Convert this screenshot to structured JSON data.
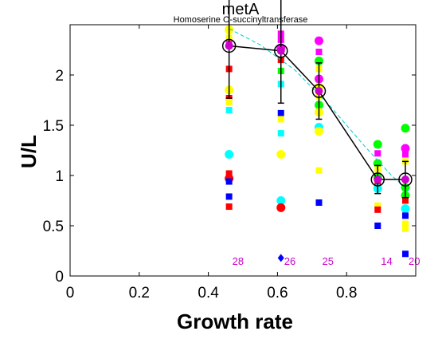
{
  "chart_data": {
    "type": "scatter",
    "title": "metA",
    "subtitle": "Homoserine O-succinyltransferase",
    "xlabel": "Growth rate",
    "ylabel": "U/L",
    "xlim": [
      0,
      1.0
    ],
    "ylim": [
      0,
      2.5
    ],
    "x_ticks": [
      {
        "value": 0,
        "label": "0"
      },
      {
        "value": 0.2,
        "label": "0.2"
      },
      {
        "value": 0.4,
        "label": "0.4"
      },
      {
        "value": 0.6,
        "label": "0.6"
      },
      {
        "value": 0.8,
        "label": "0.8"
      }
    ],
    "y_ticks": [
      {
        "value": 0,
        "label": "0"
      },
      {
        "value": 0.5,
        "label": "0.5"
      },
      {
        "value": 1,
        "label": "1"
      },
      {
        "value": 1.5,
        "label": "1.5"
      },
      {
        "value": 2,
        "label": "2"
      }
    ],
    "grid": false,
    "mean_series": {
      "color": "#000000",
      "points": [
        {
          "x": 0.46,
          "y": 2.29,
          "err": 0.52
        },
        {
          "x": 0.61,
          "y": 2.24,
          "err": 0.52
        },
        {
          "x": 0.72,
          "y": 1.84,
          "err": 0.28
        },
        {
          "x": 0.89,
          "y": 0.96,
          "err": 0.14
        },
        {
          "x": 0.97,
          "y": 0.96,
          "err": 0.18
        }
      ]
    },
    "magenta_markers": [
      {
        "x": 0.46,
        "y": 2.29
      },
      {
        "x": 0.61,
        "y": 2.24
      },
      {
        "x": 0.72,
        "y": 1.84
      },
      {
        "x": 0.89,
        "y": 0.96
      },
      {
        "x": 0.97,
        "y": 0.96
      }
    ],
    "fit_line": {
      "color": "#00cccc",
      "style": "dashed",
      "points": [
        {
          "x": 0.46,
          "y": 2.46
        },
        {
          "x": 0.55,
          "y": 2.3
        },
        {
          "x": 0.65,
          "y": 2.05
        },
        {
          "x": 0.75,
          "y": 1.7
        },
        {
          "x": 0.85,
          "y": 1.3
        },
        {
          "x": 0.93,
          "y": 1.0
        },
        {
          "x": 0.98,
          "y": 0.85
        }
      ]
    },
    "sample_counts": [
      {
        "x": 0.46,
        "label": "28"
      },
      {
        "x": 0.61,
        "label": "26"
      },
      {
        "x": 0.72,
        "label": "25"
      },
      {
        "x": 0.89,
        "label": "14"
      },
      {
        "x": 0.97,
        "label": "20"
      }
    ],
    "count_label_y": 0.11,
    "count_color": "#cc00cc",
    "points": [
      {
        "x": 0.46,
        "y": 2.45,
        "color": "#ffff00",
        "shape": "circle"
      },
      {
        "x": 0.46,
        "y": 2.37,
        "color": "#ffff00",
        "shape": "square"
      },
      {
        "x": 0.46,
        "y": 2.31,
        "color": "#ff00ff",
        "shape": "square"
      },
      {
        "x": 0.46,
        "y": 2.06,
        "color": "#ff0000",
        "shape": "square"
      },
      {
        "x": 0.46,
        "y": 1.85,
        "color": "#ffff00",
        "shape": "circle"
      },
      {
        "x": 0.46,
        "y": 1.77,
        "color": "#ff0000",
        "shape": "square"
      },
      {
        "x": 0.46,
        "y": 1.73,
        "color": "#ffff00",
        "shape": "square"
      },
      {
        "x": 0.46,
        "y": 1.65,
        "color": "#00ffff",
        "shape": "square"
      },
      {
        "x": 0.46,
        "y": 1.21,
        "color": "#00ffff",
        "shape": "circle"
      },
      {
        "x": 0.46,
        "y": 1.02,
        "color": "#ff0000",
        "shape": "square"
      },
      {
        "x": 0.46,
        "y": 0.97,
        "color": "#ff0000",
        "shape": "circle"
      },
      {
        "x": 0.46,
        "y": 0.94,
        "color": "#0000ff",
        "shape": "square"
      },
      {
        "x": 0.46,
        "y": 0.79,
        "color": "#0000ff",
        "shape": "square"
      },
      {
        "x": 0.46,
        "y": 0.69,
        "color": "#ff0000",
        "shape": "square"
      },
      {
        "x": 0.61,
        "y": 2.41,
        "color": "#ff00ff",
        "shape": "square"
      },
      {
        "x": 0.61,
        "y": 2.35,
        "color": "#ff00ff",
        "shape": "square"
      },
      {
        "x": 0.61,
        "y": 2.27,
        "color": "#ff00ff",
        "shape": "circle"
      },
      {
        "x": 0.61,
        "y": 2.15,
        "color": "#ff0000",
        "shape": "square"
      },
      {
        "x": 0.61,
        "y": 2.04,
        "color": "#00ff00",
        "shape": "square"
      },
      {
        "x": 0.61,
        "y": 1.91,
        "color": "#00ffff",
        "shape": "square"
      },
      {
        "x": 0.61,
        "y": 1.62,
        "color": "#0000ff",
        "shape": "square"
      },
      {
        "x": 0.61,
        "y": 1.56,
        "color": "#ffff00",
        "shape": "square"
      },
      {
        "x": 0.61,
        "y": 1.42,
        "color": "#00ffff",
        "shape": "square"
      },
      {
        "x": 0.61,
        "y": 1.21,
        "color": "#ffff00",
        "shape": "circle"
      },
      {
        "x": 0.61,
        "y": 0.75,
        "color": "#00ffff",
        "shape": "circle"
      },
      {
        "x": 0.61,
        "y": 0.68,
        "color": "#ff0000",
        "shape": "circle"
      },
      {
        "x": 0.61,
        "y": 0.18,
        "color": "#0000ff",
        "shape": "diamond"
      },
      {
        "x": 0.72,
        "y": 2.34,
        "color": "#ff00ff",
        "shape": "circle"
      },
      {
        "x": 0.72,
        "y": 2.23,
        "color": "#ff00ff",
        "shape": "square"
      },
      {
        "x": 0.72,
        "y": 2.14,
        "color": "#00ff00",
        "shape": "circle"
      },
      {
        "x": 0.72,
        "y": 2.06,
        "color": "#ffff00",
        "shape": "square"
      },
      {
        "x": 0.72,
        "y": 1.96,
        "color": "#ff00ff",
        "shape": "circle"
      },
      {
        "x": 0.72,
        "y": 1.88,
        "color": "#ffff00",
        "shape": "circle"
      },
      {
        "x": 0.72,
        "y": 1.79,
        "color": "#ffff00",
        "shape": "square"
      },
      {
        "x": 0.72,
        "y": 1.7,
        "color": "#00ff00",
        "shape": "circle"
      },
      {
        "x": 0.72,
        "y": 1.63,
        "color": "#ffff00",
        "shape": "circle"
      },
      {
        "x": 0.72,
        "y": 1.48,
        "color": "#00ffff",
        "shape": "circle"
      },
      {
        "x": 0.72,
        "y": 1.44,
        "color": "#ffff00",
        "shape": "circle"
      },
      {
        "x": 0.72,
        "y": 1.05,
        "color": "#ffff00",
        "shape": "square"
      },
      {
        "x": 0.72,
        "y": 0.73,
        "color": "#0000ff",
        "shape": "square"
      },
      {
        "x": 0.89,
        "y": 1.31,
        "color": "#00ff00",
        "shape": "circle"
      },
      {
        "x": 0.89,
        "y": 1.22,
        "color": "#ff00ff",
        "shape": "square"
      },
      {
        "x": 0.89,
        "y": 1.12,
        "color": "#00ff00",
        "shape": "circle"
      },
      {
        "x": 0.89,
        "y": 1.06,
        "color": "#ffff00",
        "shape": "square"
      },
      {
        "x": 0.89,
        "y": 0.98,
        "color": "#00ff00",
        "shape": "circle"
      },
      {
        "x": 0.89,
        "y": 0.93,
        "color": "#ff0000",
        "shape": "square"
      },
      {
        "x": 0.89,
        "y": 0.87,
        "color": "#00ffff",
        "shape": "circle"
      },
      {
        "x": 0.89,
        "y": 0.7,
        "color": "#ffff00",
        "shape": "square"
      },
      {
        "x": 0.89,
        "y": 0.66,
        "color": "#ff0000",
        "shape": "square"
      },
      {
        "x": 0.89,
        "y": 0.5,
        "color": "#0000ff",
        "shape": "square"
      },
      {
        "x": 0.97,
        "y": 1.47,
        "color": "#00ff00",
        "shape": "circle"
      },
      {
        "x": 0.97,
        "y": 1.27,
        "color": "#ff00ff",
        "shape": "circle"
      },
      {
        "x": 0.97,
        "y": 1.21,
        "color": "#ff00ff",
        "shape": "square"
      },
      {
        "x": 0.97,
        "y": 1.14,
        "color": "#ffff00",
        "shape": "square"
      },
      {
        "x": 0.97,
        "y": 0.88,
        "color": "#00ff00",
        "shape": "circle"
      },
      {
        "x": 0.97,
        "y": 0.8,
        "color": "#00ff00",
        "shape": "circle"
      },
      {
        "x": 0.97,
        "y": 0.75,
        "color": "#ff0000",
        "shape": "square"
      },
      {
        "x": 0.97,
        "y": 0.67,
        "color": "#00ffff",
        "shape": "circle"
      },
      {
        "x": 0.97,
        "y": 0.6,
        "color": "#0000ff",
        "shape": "square"
      },
      {
        "x": 0.97,
        "y": 0.52,
        "color": "#ffff00",
        "shape": "square"
      },
      {
        "x": 0.97,
        "y": 0.47,
        "color": "#ffff00",
        "shape": "square"
      },
      {
        "x": 0.97,
        "y": 0.22,
        "color": "#0000ff",
        "shape": "square"
      }
    ]
  }
}
